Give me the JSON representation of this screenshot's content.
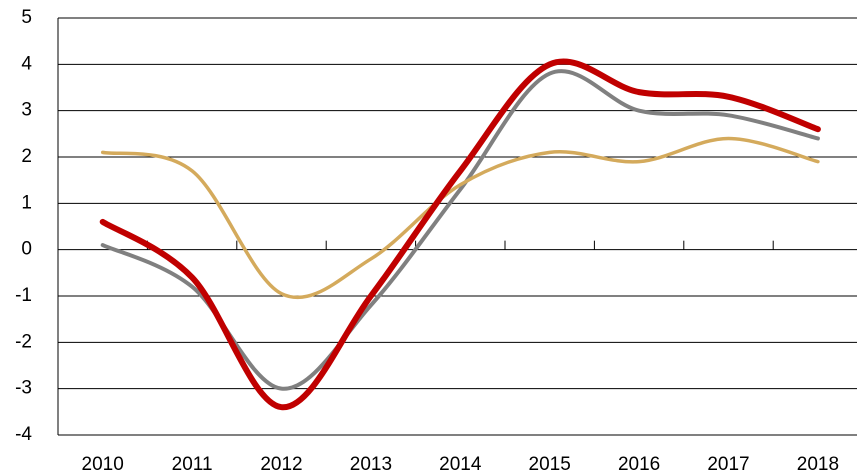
{
  "chart_data": {
    "type": "line",
    "categories": [
      "2010",
      "2011",
      "2012",
      "2013",
      "2014",
      "2015",
      "2016",
      "2017",
      "2018"
    ],
    "series": [
      {
        "color": "#808080",
        "width": 4,
        "values": [
          0.1,
          -0.8,
          -3.0,
          -1.2,
          1.3,
          3.8,
          3.0,
          2.9,
          2.4
        ]
      },
      {
        "color": "#d4aa5c",
        "width": 3.5,
        "values": [
          2.1,
          1.7,
          -0.95,
          -0.2,
          1.4,
          2.1,
          1.9,
          2.4,
          1.9
        ]
      },
      {
        "color": "#c00000",
        "width": 6,
        "values": [
          0.6,
          -0.6,
          -3.4,
          -1.0,
          1.7,
          4.0,
          3.4,
          3.3,
          2.6
        ]
      }
    ],
    "ylim": [
      -4,
      5
    ],
    "yticks": [
      -4,
      -3,
      -2,
      -1,
      0,
      1,
      2,
      3,
      4,
      5
    ],
    "grid": true,
    "smooth": true
  }
}
